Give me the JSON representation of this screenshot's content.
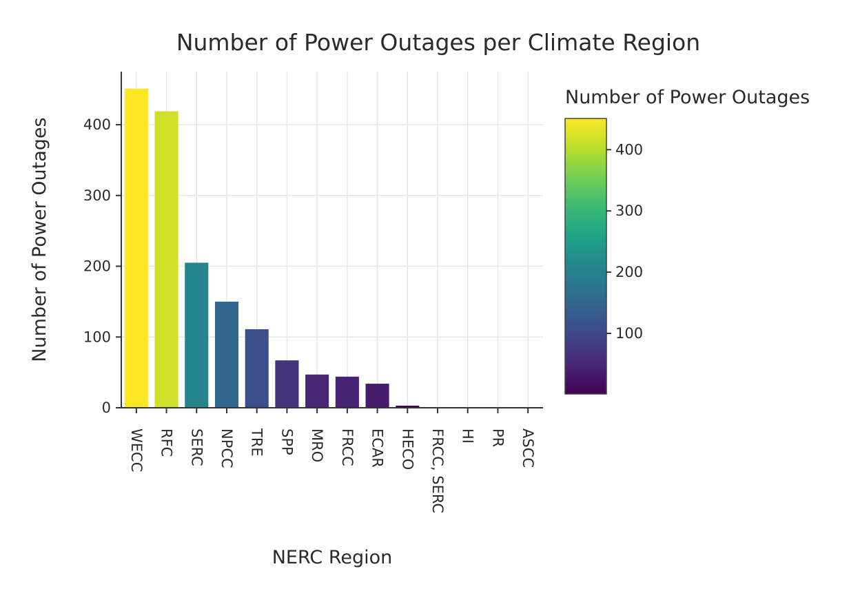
{
  "chart_data": {
    "type": "bar",
    "title": "Number of Power Outages per Climate Region",
    "xlabel": "NERC Region",
    "ylabel": "Number of Power Outages",
    "categories": [
      "WECC",
      "RFC",
      "SERC",
      "NPCC",
      "TRE",
      "SPP",
      "MRO",
      "FRCC",
      "ECAR",
      "HECO",
      "FRCC, SERC",
      "HI",
      "PR",
      "ASCC"
    ],
    "values": [
      451,
      419,
      205,
      150,
      111,
      67,
      47,
      44,
      34,
      3,
      1,
      1,
      1,
      1
    ],
    "ylim": [
      0,
      475
    ],
    "yticks": [
      0,
      100,
      200,
      300,
      400
    ],
    "grid": true,
    "colorscale": "viridis",
    "colorbar": {
      "title": "Number of Power Outages",
      "ticks": [
        100,
        200,
        300,
        400
      ],
      "range": [
        1,
        451
      ]
    }
  }
}
